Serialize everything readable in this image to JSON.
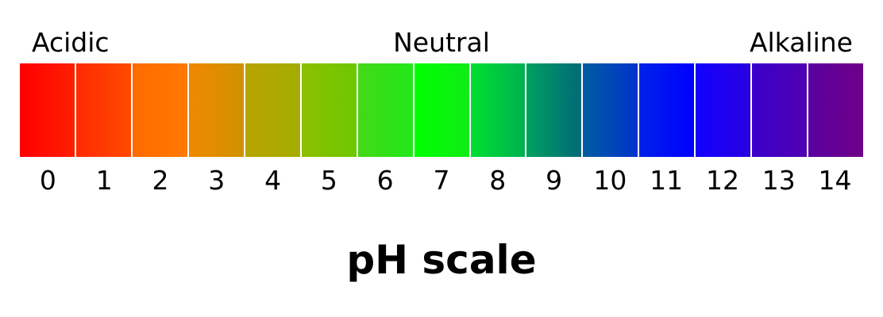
{
  "labels": {
    "acidic": "Acidic",
    "neutral": "Neutral",
    "alkaline": "Alkaline"
  },
  "title": "pH scale",
  "scale": [
    {
      "value": "0",
      "colors": [
        "#ff0000",
        "#ff1f00"
      ]
    },
    {
      "value": "1",
      "colors": [
        "#ff2a00",
        "#ff4a00"
      ]
    },
    {
      "value": "2",
      "colors": [
        "#ff6a00",
        "#ff7a00"
      ]
    },
    {
      "value": "3",
      "colors": [
        "#f08800",
        "#cf9200"
      ]
    },
    {
      "value": "4",
      "colors": [
        "#b8a400",
        "#a4ad00"
      ]
    },
    {
      "value": "5",
      "colors": [
        "#8cbf00",
        "#6cc800"
      ]
    },
    {
      "value": "6",
      "colors": [
        "#44d817",
        "#22e81a"
      ]
    },
    {
      "value": "7",
      "colors": [
        "#00ff00",
        "#10ec18"
      ]
    },
    {
      "value": "8",
      "colors": [
        "#00e030",
        "#00b050"
      ]
    },
    {
      "value": "9",
      "colors": [
        "#00a060",
        "#006a78"
      ]
    },
    {
      "value": "10",
      "colors": [
        "#005ca0",
        "#0033cc"
      ]
    },
    {
      "value": "11",
      "colors": [
        "#0022e8",
        "#0000ff"
      ]
    },
    {
      "value": "12",
      "colors": [
        "#1200ff",
        "#2a00e0"
      ]
    },
    {
      "value": "13",
      "colors": [
        "#3a00cc",
        "#5000b0"
      ]
    },
    {
      "value": "14",
      "colors": [
        "#5a00a0",
        "#6e0088"
      ]
    }
  ]
}
